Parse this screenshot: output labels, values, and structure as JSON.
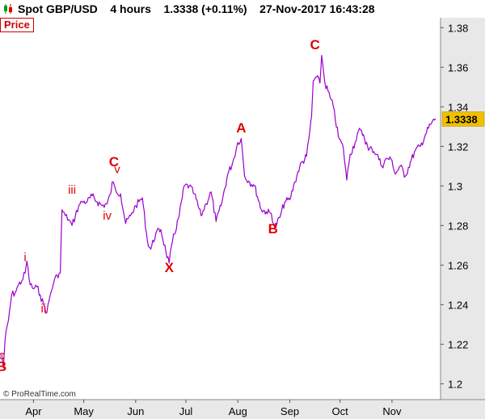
{
  "header": {
    "title": "Spot GBP/USD    4 hours    1.3338 (+0.11%)    27-Nov-2017 16:43:28",
    "icon": "candlestick-icon"
  },
  "panel": {
    "label": "Price"
  },
  "footer": {
    "copyright": "© ProRealTime.com"
  },
  "colors": {
    "line": "#9900cc",
    "annotation": "#e00000",
    "last_price_bg": "#f0c000",
    "axis_bg": "#e8e8e8"
  },
  "chart_data": {
    "type": "line",
    "series": [
      {
        "points": [
          [
            "2017-03-13",
            1.215
          ],
          [
            "2017-03-14",
            1.208
          ],
          [
            "2017-03-15",
            1.222
          ],
          [
            "2017-03-17",
            1.232
          ],
          [
            "2017-03-19",
            1.245
          ],
          [
            "2017-03-21",
            1.246
          ],
          [
            "2017-03-23",
            1.25
          ],
          [
            "2017-03-25",
            1.252
          ],
          [
            "2017-03-27",
            1.256
          ],
          [
            "2017-03-28",
            1.262
          ],
          [
            "2017-03-30",
            1.25
          ],
          [
            "2017-04-01",
            1.248
          ],
          [
            "2017-04-03",
            1.249
          ],
          [
            "2017-04-05",
            1.245
          ],
          [
            "2017-04-07",
            1.24
          ],
          [
            "2017-04-09",
            1.236
          ],
          [
            "2017-04-11",
            1.245
          ],
          [
            "2017-04-13",
            1.251
          ],
          [
            "2017-04-15",
            1.255
          ],
          [
            "2017-04-17",
            1.256
          ],
          [
            "2017-04-18",
            1.288
          ],
          [
            "2017-04-20",
            1.285
          ],
          [
            "2017-04-22",
            1.283
          ],
          [
            "2017-04-24",
            1.28
          ],
          [
            "2017-04-26",
            1.285
          ],
          [
            "2017-04-28",
            1.29
          ],
          [
            "2017-04-30",
            1.292
          ],
          [
            "2017-05-03",
            1.292
          ],
          [
            "2017-05-06",
            1.295
          ],
          [
            "2017-05-09",
            1.292
          ],
          [
            "2017-05-12",
            1.29
          ],
          [
            "2017-05-15",
            1.291
          ],
          [
            "2017-05-17",
            1.296
          ],
          [
            "2017-05-18",
            1.302
          ],
          [
            "2017-05-20",
            1.298
          ],
          [
            "2017-05-23",
            1.296
          ],
          [
            "2017-05-26",
            1.281
          ],
          [
            "2017-05-29",
            1.285
          ],
          [
            "2017-06-01",
            1.29
          ],
          [
            "2017-06-03",
            1.292
          ],
          [
            "2017-06-05",
            1.294
          ],
          [
            "2017-06-08",
            1.272
          ],
          [
            "2017-06-10",
            1.268
          ],
          [
            "2017-06-13",
            1.276
          ],
          [
            "2017-06-16",
            1.278
          ],
          [
            "2017-06-19",
            1.267
          ],
          [
            "2017-06-21",
            1.261
          ],
          [
            "2017-06-23",
            1.272
          ],
          [
            "2017-06-27",
            1.285
          ],
          [
            "2017-06-30",
            1.3
          ],
          [
            "2017-07-03",
            1.3
          ],
          [
            "2017-07-06",
            1.296
          ],
          [
            "2017-07-10",
            1.285
          ],
          [
            "2017-07-13",
            1.291
          ],
          [
            "2017-07-16",
            1.297
          ],
          [
            "2017-07-19",
            1.282
          ],
          [
            "2017-07-22",
            1.29
          ],
          [
            "2017-07-26",
            1.306
          ],
          [
            "2017-07-29",
            1.312
          ],
          [
            "2017-08-01",
            1.322
          ],
          [
            "2017-08-03",
            1.324
          ],
          [
            "2017-08-05",
            1.305
          ],
          [
            "2017-08-08",
            1.302
          ],
          [
            "2017-08-11",
            1.3
          ],
          [
            "2017-08-15",
            1.288
          ],
          [
            "2017-08-18",
            1.287
          ],
          [
            "2017-08-21",
            1.286
          ],
          [
            "2017-08-23",
            1.279
          ],
          [
            "2017-08-26",
            1.284
          ],
          [
            "2017-08-29",
            1.292
          ],
          [
            "2017-09-01",
            1.293
          ],
          [
            "2017-09-04",
            1.302
          ],
          [
            "2017-09-07",
            1.31
          ],
          [
            "2017-09-11",
            1.315
          ],
          [
            "2017-09-13",
            1.328
          ],
          [
            "2017-09-14",
            1.335
          ],
          [
            "2017-09-15",
            1.353
          ],
          [
            "2017-09-17",
            1.355
          ],
          [
            "2017-09-19",
            1.352
          ],
          [
            "2017-09-20",
            1.366
          ],
          [
            "2017-09-22",
            1.352
          ],
          [
            "2017-09-25",
            1.345
          ],
          [
            "2017-09-27",
            1.34
          ],
          [
            "2017-09-30",
            1.325
          ],
          [
            "2017-10-03",
            1.319
          ],
          [
            "2017-10-05",
            1.303
          ],
          [
            "2017-10-07",
            1.316
          ],
          [
            "2017-10-10",
            1.322
          ],
          [
            "2017-10-12",
            1.328
          ],
          [
            "2017-10-15",
            1.326
          ],
          [
            "2017-10-18",
            1.318
          ],
          [
            "2017-10-20",
            1.319
          ],
          [
            "2017-10-23",
            1.316
          ],
          [
            "2017-10-26",
            1.31
          ],
          [
            "2017-10-29",
            1.314
          ],
          [
            "2017-11-01",
            1.313
          ],
          [
            "2017-11-03",
            1.306
          ],
          [
            "2017-11-06",
            1.31
          ],
          [
            "2017-11-09",
            1.305
          ],
          [
            "2017-11-12",
            1.312
          ],
          [
            "2017-11-15",
            1.318
          ],
          [
            "2017-11-18",
            1.32
          ],
          [
            "2017-11-21",
            1.326
          ],
          [
            "2017-11-24",
            1.331
          ],
          [
            "2017-11-27",
            1.334
          ]
        ]
      }
    ],
    "x_ticks": [
      {
        "date": "2017-04-01",
        "label": "Apr"
      },
      {
        "date": "2017-05-01",
        "label": "May"
      },
      {
        "date": "2017-06-01",
        "label": "Jun"
      },
      {
        "date": "2017-07-01",
        "label": "Jul"
      },
      {
        "date": "2017-08-01",
        "label": "Aug"
      },
      {
        "date": "2017-09-01",
        "label": "Sep"
      },
      {
        "date": "2017-10-01",
        "label": "Oct"
      },
      {
        "date": "2017-11-01",
        "label": "Nov"
      }
    ],
    "y_ticks": [
      {
        "value": 1.38,
        "label": "1.38"
      },
      {
        "value": 1.36,
        "label": "1.36"
      },
      {
        "value": 1.34,
        "label": "1.34"
      },
      {
        "value": 1.32,
        "label": "1.32"
      },
      {
        "value": 1.3,
        "label": "1.3"
      },
      {
        "value": 1.28,
        "label": "1.28"
      },
      {
        "value": 1.26,
        "label": "1.26"
      },
      {
        "value": 1.24,
        "label": "1.24"
      },
      {
        "value": 1.22,
        "label": "1.22"
      },
      {
        "value": 1.2,
        "label": "1.2"
      }
    ],
    "xlim": [
      "2017-03-12",
      "2017-11-30"
    ],
    "ylim": [
      1.192,
      1.385
    ],
    "last_price": {
      "value": 1.3338,
      "label": "1.3338"
    },
    "annotations": [
      {
        "text": "c",
        "date": "2017-03-13",
        "value": 1.2125
      },
      {
        "text": "B",
        "date": "2017-03-13",
        "value": 1.2065
      },
      {
        "text": "i",
        "date": "2017-03-27",
        "value": 1.262
      },
      {
        "text": "ii",
        "date": "2017-04-07",
        "value": 1.236
      },
      {
        "text": "iii",
        "date": "2017-04-24",
        "value": 1.296
      },
      {
        "text": "iv",
        "date": "2017-05-15",
        "value": 1.283
      },
      {
        "text": "C",
        "date": "2017-05-19",
        "value": 1.31
      },
      {
        "text": "v",
        "date": "2017-05-21",
        "value": 1.3065
      },
      {
        "text": "X",
        "date": "2017-06-21",
        "value": 1.2565
      },
      {
        "text": "A",
        "date": "2017-08-03",
        "value": 1.327
      },
      {
        "text": "B",
        "date": "2017-08-22",
        "value": 1.276
      },
      {
        "text": "C",
        "date": "2017-09-16",
        "value": 1.369
      }
    ],
    "grid": false
  }
}
